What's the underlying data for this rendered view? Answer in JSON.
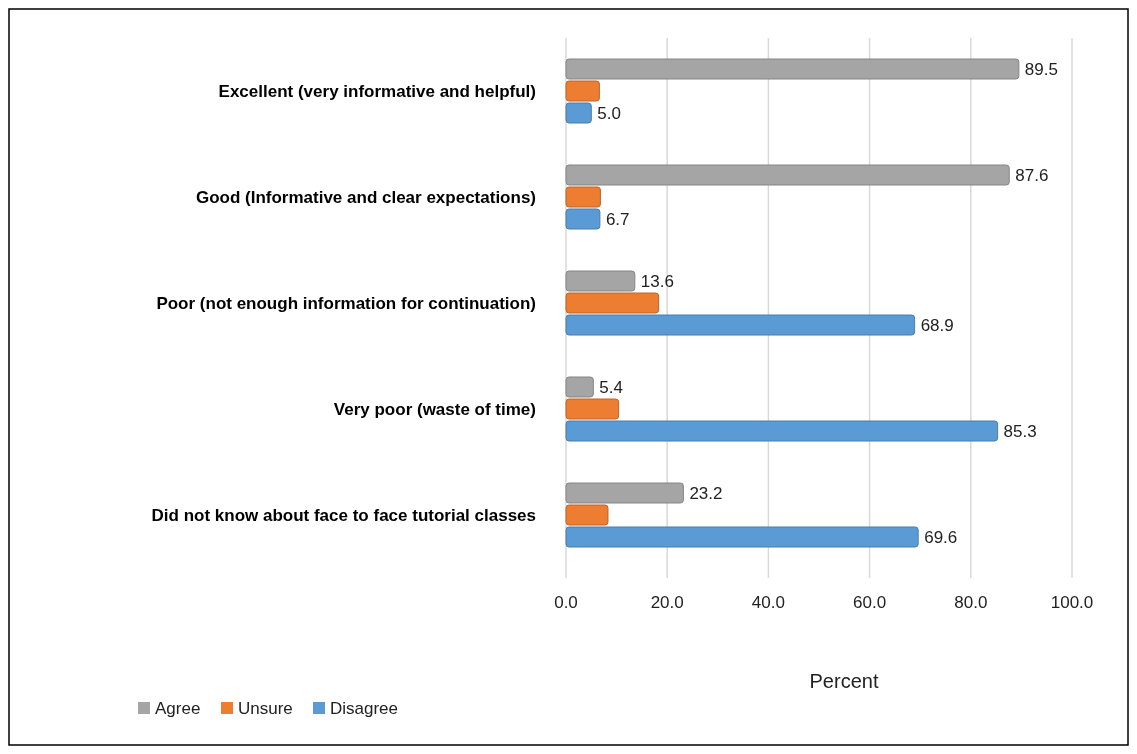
{
  "chart_data": {
    "type": "bar",
    "orientation": "horizontal",
    "xlabel": "Percent",
    "categories": [
      "Excellent (very informative and helpful)",
      "Good (Informative and clear expectations)",
      "Poor (not enough information for continuation)",
      "Very poor (waste of time)",
      "Did not know about face to face tutorial classes"
    ],
    "series": [
      {
        "name": "Agree",
        "color": "#a5a5a5",
        "values": [
          89.5,
          87.6,
          13.6,
          5.4,
          23.2
        ],
        "value_labels": [
          "89.5",
          "87.6",
          "13.6",
          "5.4",
          "23.2"
        ]
      },
      {
        "name": "Unsure",
        "color": "#ed7d31",
        "values": [
          6.6,
          6.8,
          18.3,
          10.4,
          8.3
        ]
      },
      {
        "name": "Disagree",
        "color": "#5b9bd5",
        "values": [
          5.0,
          6.7,
          68.9,
          85.3,
          69.6
        ],
        "value_labels": [
          "5.0",
          "6.7",
          "68.9",
          "85.3",
          "69.6"
        ]
      }
    ],
    "xlim": [
      0,
      100
    ],
    "xticks": [
      {
        "value": 0,
        "label": "0.0"
      },
      {
        "value": 20,
        "label": "20.0"
      },
      {
        "value": 40,
        "label": "40.0"
      },
      {
        "value": 60,
        "label": "60.0"
      },
      {
        "value": 80,
        "label": "80.0"
      },
      {
        "value": 100,
        "label": "100.0"
      }
    ],
    "grid": "x",
    "legend": "bottom left"
  }
}
